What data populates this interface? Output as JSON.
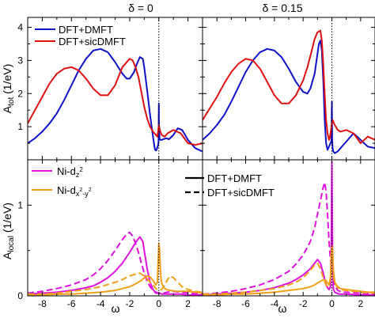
{
  "colors": {
    "blue": "#1010c8",
    "red": "#e01010",
    "magenta": "#e010e0",
    "orange": "#f0a018",
    "frame": "#000000"
  },
  "chart_data": [
    {
      "type": "line",
      "panel": "top-left",
      "title": "δ = 0",
      "ylabel": "A_tot (1/eV)",
      "xlim": [
        -9,
        3
      ],
      "ylim": [
        0,
        4.3
      ],
      "yticks": [
        1,
        2,
        3,
        4
      ],
      "yticklabels": [
        "1",
        "2",
        "3",
        "4"
      ],
      "fermi_line_x": 0,
      "legend": {
        "position": "top-left",
        "entries": [
          "DFT+DMFT",
          "DFT+sicDMFT"
        ]
      },
      "series": [
        {
          "name": "DFT+DMFT",
          "color": "blue",
          "style": "solid",
          "x": [
            -9,
            -8.5,
            -8,
            -7.5,
            -7,
            -6.5,
            -6,
            -5.5,
            -5,
            -4.5,
            -4,
            -3.5,
            -3,
            -2.5,
            -2.2,
            -2,
            -1.7,
            -1.5,
            -1.3,
            -1.1,
            -1,
            -0.8,
            -0.6,
            -0.4,
            -0.3,
            -0.25,
            -0.2,
            -0.15,
            -0.12,
            -0.08,
            -0.05,
            -0.03,
            -0.02,
            -0.01,
            0,
            0.01,
            0.02,
            0.05,
            0.1,
            0.2,
            0.3,
            0.5,
            0.7,
            1,
            1.3,
            1.6,
            2,
            2.5,
            3
          ],
          "y": [
            0.5,
            0.65,
            0.85,
            1.1,
            1.4,
            1.8,
            2.25,
            2.7,
            3.05,
            3.3,
            3.35,
            3.25,
            2.95,
            2.6,
            2.45,
            2.45,
            2.65,
            2.9,
            3.1,
            3.05,
            2.8,
            2.1,
            1.35,
            0.7,
            0.4,
            0.3,
            0.28,
            0.3,
            0.35,
            0.4,
            0.45,
            0.5,
            0.55,
            1.2,
            1.7,
            1.3,
            0.9,
            0.65,
            0.6,
            0.6,
            0.62,
            0.65,
            0.62,
            0.75,
            0.95,
            0.9,
            0.6,
            0.35,
            0.25
          ]
        },
        {
          "name": "DFT+sicDMFT",
          "color": "red",
          "style": "solid",
          "x": [
            -9,
            -8.5,
            -8,
            -7.5,
            -7,
            -6.5,
            -6,
            -5.5,
            -5,
            -4.5,
            -4,
            -3.5,
            -3,
            -2.5,
            -2,
            -1.8,
            -1.6,
            -1.4,
            -1.2,
            -1,
            -0.8,
            -0.6,
            -0.4,
            -0.2,
            -0.1,
            -0.05,
            0,
            0.05,
            0.1,
            0.2,
            0.4,
            0.6,
            1,
            1.5,
            2,
            2.5,
            3
          ],
          "y": [
            1.1,
            1.5,
            1.9,
            2.3,
            2.6,
            2.75,
            2.8,
            2.7,
            2.45,
            2.15,
            1.95,
            1.95,
            2.25,
            2.8,
            3.05,
            3.0,
            2.8,
            2.5,
            2.05,
            1.6,
            1.25,
            1.0,
            0.85,
            0.75,
            0.7,
            0.85,
            1.05,
            0.95,
            0.85,
            0.75,
            0.7,
            0.8,
            0.9,
            0.8,
            0.5,
            0.45,
            0.5
          ]
        }
      ]
    },
    {
      "type": "line",
      "panel": "top-right",
      "title": "δ = 0.15",
      "xlim": [
        -9,
        3
      ],
      "ylim": [
        0,
        4.3
      ],
      "fermi_line_x": 0,
      "series": [
        {
          "name": "DFT+DMFT",
          "color": "blue",
          "style": "solid",
          "x": [
            -9,
            -8.5,
            -8,
            -7.5,
            -7,
            -6.5,
            -6,
            -5.5,
            -5,
            -4.5,
            -4,
            -3.5,
            -3,
            -2.5,
            -2,
            -1.7,
            -1.5,
            -1.2,
            -1,
            -0.9,
            -0.8,
            -0.7,
            -0.6,
            -0.5,
            -0.4,
            -0.3,
            -0.25,
            -0.2,
            -0.15,
            -0.1,
            -0.05,
            -0.03,
            -0.02,
            -0.01,
            0,
            0.01,
            0.02,
            0.05,
            0.1,
            0.2,
            0.4,
            0.6,
            1,
            1.5,
            2,
            2.5,
            3
          ],
          "y": [
            0.6,
            0.8,
            1.05,
            1.35,
            1.75,
            2.2,
            2.65,
            3.0,
            3.25,
            3.35,
            3.3,
            3.1,
            2.75,
            2.35,
            2.05,
            2.0,
            2.15,
            2.6,
            3.2,
            3.5,
            3.6,
            3.3,
            2.4,
            1.2,
            0.5,
            0.3,
            0.35,
            0.4,
            0.45,
            0.5,
            0.55,
            0.6,
            0.7,
            1.4,
            1.75,
            1.2,
            0.6,
            0.35,
            0.25,
            0.2,
            0.25,
            0.35,
            0.55,
            0.8,
            0.6,
            0.4,
            0.35
          ]
        },
        {
          "name": "DFT+sicDMFT",
          "color": "red",
          "style": "solid",
          "x": [
            -9,
            -8.5,
            -8,
            -7.5,
            -7,
            -6.5,
            -6,
            -5.5,
            -5,
            -4.5,
            -4,
            -3.5,
            -3,
            -2.5,
            -2,
            -1.7,
            -1.4,
            -1.2,
            -1,
            -0.8,
            -0.7,
            -0.6,
            -0.5,
            -0.4,
            -0.3,
            -0.2,
            -0.15,
            -0.1,
            -0.05,
            0,
            0.05,
            0.1,
            0.2,
            0.4,
            0.6,
            1,
            1.5,
            2,
            2.5,
            3
          ],
          "y": [
            1.2,
            1.55,
            1.9,
            2.3,
            2.65,
            2.9,
            3.05,
            3.0,
            2.75,
            2.35,
            1.95,
            1.7,
            1.7,
            1.95,
            2.4,
            2.8,
            3.3,
            3.65,
            3.85,
            3.9,
            3.6,
            2.9,
            2.0,
            1.2,
            0.8,
            0.6,
            0.65,
            0.8,
            0.95,
            1.1,
            1.2,
            1.15,
            1.05,
            0.9,
            0.85,
            0.9,
            0.8,
            0.5,
            0.7,
            0.6
          ]
        }
      ]
    },
    {
      "type": "line",
      "panel": "bottom-left",
      "xlabel": "ω",
      "ylabel": "A_local (1/eV)",
      "xlim": [
        -9,
        3
      ],
      "ylim": [
        0,
        1.5
      ],
      "xticks": [
        -8,
        -6,
        -4,
        -2,
        0,
        2
      ],
      "xticklabels": [
        "-8",
        "-6",
        "-4",
        "-2",
        "0",
        "2"
      ],
      "yticks": [
        0,
        1
      ],
      "yticklabels": [
        "0",
        "1"
      ],
      "fermi_line_x": 0,
      "legend_orbitals": {
        "position": "top-left",
        "entries": [
          "Ni-d_z²",
          "Ni-d_x²-y²"
        ]
      },
      "legend_methods": {
        "position": "top-right",
        "entries": [
          "DFT+DMFT",
          "DFT+sicDMFT"
        ]
      },
      "series": [
        {
          "name": "Ni-d_z²",
          "method": "DFT+DMFT",
          "color": "magenta",
          "style": "solid",
          "x": [
            -9,
            -8,
            -7,
            -6,
            -5,
            -4.5,
            -4,
            -3.5,
            -3,
            -2.5,
            -2,
            -1.7,
            -1.5,
            -1.3,
            -1.1,
            -1,
            -0.8,
            -0.6,
            -0.4,
            -0.2,
            0,
            0.2,
            0.5,
            1,
            1.5,
            2,
            3
          ],
          "y": [
            0.02,
            0.03,
            0.04,
            0.06,
            0.09,
            0.11,
            0.15,
            0.2,
            0.27,
            0.36,
            0.48,
            0.56,
            0.61,
            0.65,
            0.6,
            0.5,
            0.3,
            0.15,
            0.07,
            0.03,
            0.03,
            0.02,
            0.02,
            0.02,
            0.02,
            0.01,
            0.01
          ]
        },
        {
          "name": "Ni-d_z²",
          "method": "DFT+sicDMFT",
          "color": "magenta",
          "style": "dashed",
          "x": [
            -9,
            -8,
            -7,
            -6,
            -5,
            -4.5,
            -4,
            -3.5,
            -3,
            -2.5,
            -2.2,
            -2,
            -1.8,
            -1.6,
            -1.4,
            -1.2,
            -1,
            -0.8,
            -0.6,
            -0.4,
            -0.2,
            0,
            0.3,
            0.6,
            1,
            1.5,
            2,
            3
          ],
          "y": [
            0.03,
            0.05,
            0.08,
            0.12,
            0.18,
            0.23,
            0.3,
            0.39,
            0.5,
            0.62,
            0.68,
            0.7,
            0.66,
            0.58,
            0.48,
            0.36,
            0.25,
            0.16,
            0.1,
            0.06,
            0.04,
            0.03,
            0.03,
            0.04,
            0.05,
            0.04,
            0.03,
            0.02
          ]
        },
        {
          "name": "Ni-d_x²-y²",
          "method": "DFT+DMFT",
          "color": "orange",
          "style": "solid",
          "x": [
            -9,
            -8,
            -7,
            -6,
            -5,
            -4,
            -3,
            -2.5,
            -2,
            -1.5,
            -1.2,
            -1,
            -0.8,
            -0.6,
            -0.4,
            -0.2,
            -0.1,
            -0.05,
            0,
            0.05,
            0.1,
            0.15,
            0.2,
            0.3,
            0.5,
            0.8,
            1.2,
            1.6,
            2,
            2.5,
            3
          ],
          "y": [
            0.01,
            0.01,
            0.02,
            0.02,
            0.03,
            0.04,
            0.06,
            0.08,
            0.1,
            0.14,
            0.17,
            0.2,
            0.22,
            0.21,
            0.17,
            0.12,
            0.15,
            0.35,
            0.58,
            0.5,
            0.32,
            0.2,
            0.14,
            0.1,
            0.07,
            0.06,
            0.05,
            0.05,
            0.05,
            0.04,
            0.03
          ]
        },
        {
          "name": "Ni-d_x²-y²",
          "method": "DFT+sicDMFT",
          "color": "orange",
          "style": "dashed",
          "x": [
            -9,
            -8,
            -7,
            -6,
            -5,
            -4,
            -3,
            -2.5,
            -2,
            -1.6,
            -1.3,
            -1,
            -0.7,
            -0.4,
            -0.2,
            0,
            0.2,
            0.4,
            0.6,
            0.8,
            1,
            1.3,
            1.6,
            2,
            2.5,
            3
          ],
          "y": [
            0.02,
            0.02,
            0.03,
            0.05,
            0.07,
            0.1,
            0.15,
            0.18,
            0.22,
            0.24,
            0.25,
            0.22,
            0.17,
            0.12,
            0.08,
            0.06,
            0.07,
            0.12,
            0.18,
            0.22,
            0.2,
            0.15,
            0.1,
            0.07,
            0.05,
            0.04
          ]
        }
      ]
    },
    {
      "type": "line",
      "panel": "bottom-right",
      "xlabel": "ω",
      "xlim": [
        -9,
        3
      ],
      "ylim": [
        0,
        1.5
      ],
      "xticks": [
        -8,
        -6,
        -4,
        -2,
        0,
        2
      ],
      "xticklabels": [
        "-8",
        "-6",
        "-4",
        "-2",
        "0",
        "2"
      ],
      "fermi_line_x": 0,
      "series": [
        {
          "name": "Ni-d_z²",
          "method": "DFT+DMFT",
          "color": "magenta",
          "style": "solid",
          "x": [
            -9,
            -8,
            -7,
            -6,
            -5,
            -4,
            -3,
            -2.5,
            -2,
            -1.5,
            -1.2,
            -1,
            -0.8,
            -0.6,
            -0.4,
            -0.3,
            -0.2,
            -0.1,
            -0.05,
            0,
            0.05,
            0.1,
            0.2,
            0.5,
            1,
            2,
            3
          ],
          "y": [
            0.01,
            0.02,
            0.03,
            0.04,
            0.06,
            0.09,
            0.14,
            0.18,
            0.23,
            0.3,
            0.36,
            0.4,
            0.36,
            0.25,
            0.12,
            0.09,
            0.07,
            0.1,
            0.4,
            1.48,
            0.4,
            0.08,
            0.04,
            0.02,
            0.02,
            0.01,
            0.01
          ]
        },
        {
          "name": "Ni-d_z²",
          "method": "DFT+sicDMFT",
          "color": "magenta",
          "style": "dashed",
          "x": [
            -9,
            -8,
            -7,
            -6,
            -5,
            -4,
            -3,
            -2.5,
            -2,
            -1.5,
            -1.2,
            -1,
            -0.8,
            -0.6,
            -0.5,
            -0.4,
            -0.3,
            -0.2,
            -0.1,
            0,
            0.1,
            0.2,
            0.4,
            0.7,
            1,
            2,
            3
          ],
          "y": [
            0.02,
            0.03,
            0.05,
            0.08,
            0.12,
            0.18,
            0.27,
            0.35,
            0.45,
            0.6,
            0.75,
            0.9,
            1.05,
            1.2,
            1.25,
            1.15,
            0.9,
            0.6,
            0.4,
            0.3,
            0.2,
            0.12,
            0.06,
            0.04,
            0.04,
            0.03,
            0.02
          ]
        },
        {
          "name": "Ni-d_x²-y²",
          "method": "DFT+DMFT",
          "color": "orange",
          "style": "solid",
          "x": [
            -9,
            -8,
            -7,
            -6,
            -5,
            -4,
            -3,
            -2.5,
            -2,
            -1.5,
            -1.2,
            -1,
            -0.8,
            -0.6,
            -0.4,
            -0.3,
            -0.2,
            -0.1,
            -0.05,
            0,
            0.05,
            0.1,
            0.2,
            0.4,
            0.6,
            1,
            1.5,
            2,
            2.5,
            3
          ],
          "y": [
            0.01,
            0.01,
            0.02,
            0.02,
            0.03,
            0.04,
            0.06,
            0.07,
            0.08,
            0.1,
            0.12,
            0.14,
            0.16,
            0.18,
            0.17,
            0.14,
            0.12,
            0.2,
            0.45,
            0.55,
            0.5,
            0.3,
            0.15,
            0.1,
            0.08,
            0.07,
            0.06,
            0.05,
            0.04,
            0.04
          ]
        },
        {
          "name": "Ni-d_x²-y²",
          "method": "DFT+sicDMFT",
          "color": "orange",
          "style": "dashed",
          "x": [
            -9,
            -8,
            -7,
            -6,
            -5,
            -4,
            -3,
            -2.5,
            -2,
            -1.5,
            -1.2,
            -1,
            -0.8,
            -0.6,
            -0.4,
            -0.3,
            -0.2,
            -0.1,
            0,
            0.1,
            0.2,
            0.4,
            0.6,
            1,
            1.5,
            2,
            3
          ],
          "y": [
            0.02,
            0.02,
            0.03,
            0.04,
            0.06,
            0.08,
            0.12,
            0.15,
            0.2,
            0.28,
            0.34,
            0.36,
            0.3,
            0.2,
            0.12,
            0.1,
            0.12,
            0.2,
            0.28,
            0.22,
            0.14,
            0.09,
            0.07,
            0.06,
            0.05,
            0.04,
            0.03
          ]
        }
      ]
    }
  ]
}
